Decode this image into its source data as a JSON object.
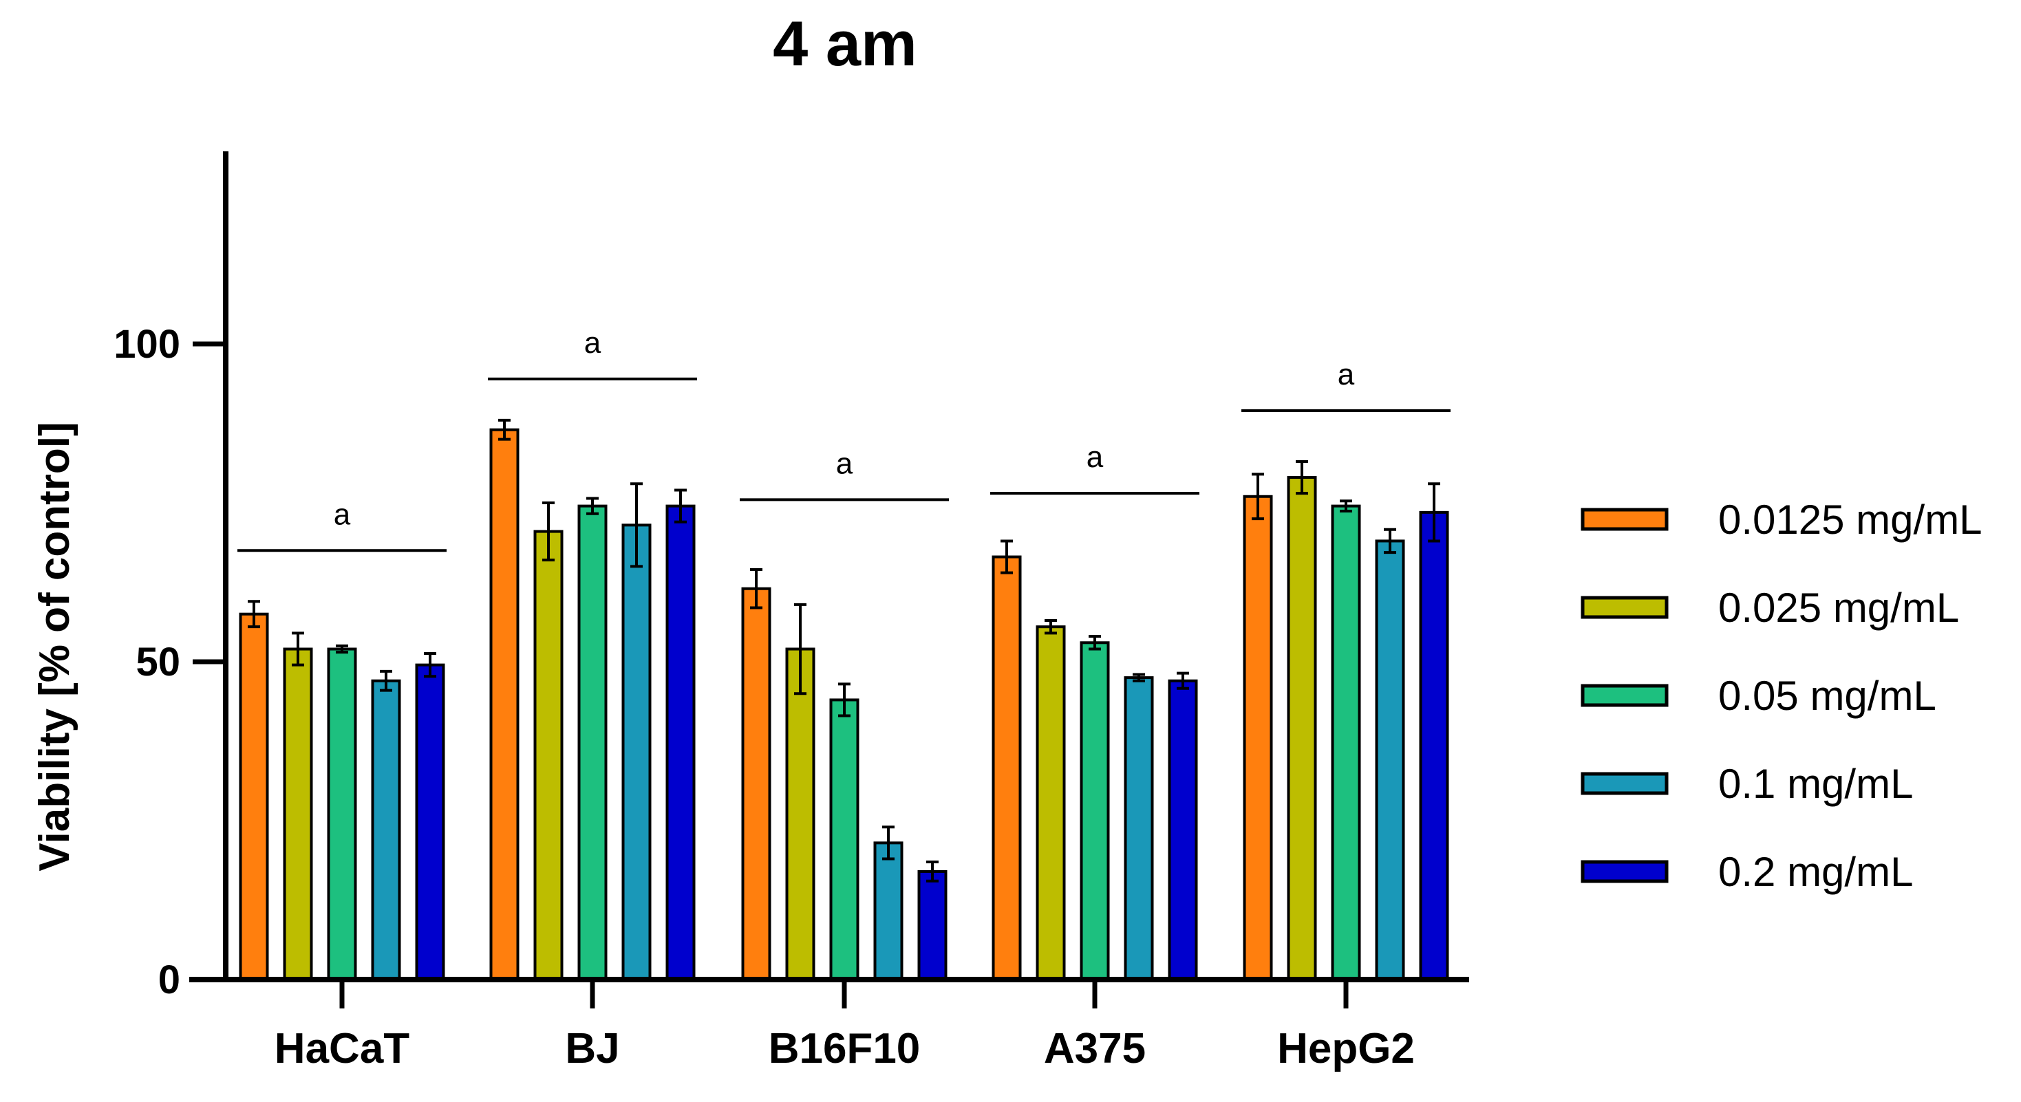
{
  "chart_data": {
    "type": "bar",
    "title": "4 am",
    "xlabel": "",
    "ylabel": "Viability [% of control]",
    "ylim": [
      0,
      125
    ],
    "yticks": [
      0,
      50,
      100
    ],
    "grid": false,
    "legend_position": "right",
    "categories": [
      "HaCaT",
      "BJ",
      "B16F10",
      "A375",
      "HepG2"
    ],
    "series": [
      {
        "name": "0.0125 mg/mL",
        "color": "#FF7F0E",
        "values": [
          57.5,
          86.5,
          61.5,
          66.5,
          76
        ],
        "errors": [
          2,
          1.5,
          3,
          2.5,
          3.5
        ]
      },
      {
        "name": "0.025 mg/mL",
        "color": "#BDBD00",
        "values": [
          52,
          70.5,
          52,
          55.5,
          79
        ],
        "errors": [
          2.5,
          4.5,
          7,
          1,
          2.5
        ]
      },
      {
        "name": "0.05 mg/mL",
        "color": "#1DC07F",
        "values": [
          52,
          74.5,
          44,
          53,
          74.5
        ],
        "errors": [
          0.5,
          1.2,
          2.5,
          1,
          0.8
        ]
      },
      {
        "name": "0.1 mg/mL",
        "color": "#1A98B8",
        "values": [
          47,
          71.5,
          21.5,
          47.5,
          69
        ],
        "errors": [
          1.5,
          6.5,
          2.5,
          0.5,
          1.8
        ]
      },
      {
        "name": "0.2 mg/mL",
        "color": "#0000CD",
        "values": [
          49.5,
          74.5,
          17,
          47,
          73.5
        ],
        "errors": [
          1.8,
          2.5,
          1.5,
          1.2,
          4.5
        ]
      }
    ],
    "annotations": [
      {
        "category": "HaCaT",
        "label": "a",
        "y": 67.5
      },
      {
        "category": "BJ",
        "label": "a",
        "y": 94.5
      },
      {
        "category": "B16F10",
        "label": "a",
        "y": 75.5
      },
      {
        "category": "A375",
        "label": "a",
        "y": 76.5
      },
      {
        "category": "HepG2",
        "label": "a",
        "y": 89.5
      }
    ]
  }
}
